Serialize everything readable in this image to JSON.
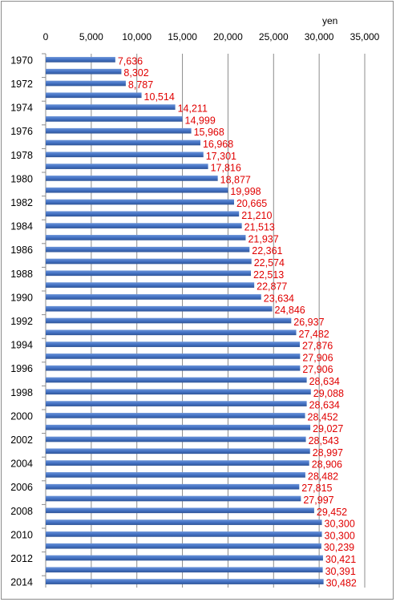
{
  "chart_data": {
    "type": "bar",
    "orientation": "horizontal",
    "unit_label": "yen",
    "xlim": [
      0,
      35000
    ],
    "x_ticks": [
      "0",
      "5,000",
      "10,000",
      "15,000",
      "20,000",
      "25,000",
      "30,000",
      "35,000"
    ],
    "x_tick_values": [
      0,
      5000,
      10000,
      15000,
      20000,
      25000,
      30000,
      35000
    ],
    "categories": [
      "1970",
      "1971",
      "1972",
      "1973",
      "1974",
      "1975",
      "1976",
      "1977",
      "1978",
      "1979",
      "1980",
      "1981",
      "1982",
      "1983",
      "1984",
      "1985",
      "1986",
      "1987",
      "1988",
      "1989",
      "1990",
      "1991",
      "1992",
      "1993",
      "1994",
      "1995",
      "1996",
      "1997",
      "1998",
      "1999",
      "2000",
      "2001",
      "2002",
      "2003",
      "2004",
      "2005",
      "2006",
      "2007",
      "2008",
      "2009",
      "2010",
      "2011",
      "2012",
      "2013",
      "2014"
    ],
    "category_labels_shown": [
      "1970",
      "",
      "1972",
      "",
      "1974",
      "",
      "1976",
      "",
      "1978",
      "",
      "1980",
      "",
      "1982",
      "",
      "1984",
      "",
      "1986",
      "",
      "1988",
      "",
      "1990",
      "",
      "1992",
      "",
      "1994",
      "",
      "1996",
      "",
      "1998",
      "",
      "2000",
      "",
      "2002",
      "",
      "2004",
      "",
      "2006",
      "",
      "2008",
      "",
      "2010",
      "",
      "2012",
      "",
      "2014"
    ],
    "values": [
      7636,
      8302,
      8787,
      10514,
      14211,
      14999,
      15968,
      16968,
      17301,
      17816,
      18877,
      19998,
      20665,
      21210,
      21513,
      21937,
      22361,
      22574,
      22513,
      22877,
      23634,
      24846,
      26937,
      27482,
      27876,
      27906,
      27906,
      28634,
      29088,
      28634,
      28452,
      29027,
      28543,
      28997,
      28906,
      28482,
      27815,
      27997,
      29452,
      30300,
      30300,
      30239,
      30421,
      30391,
      30482
    ],
    "value_labels": [
      "7,636",
      "8,302",
      "8,787",
      "10,514",
      "14,211",
      "14,999",
      "15,968",
      "16,968",
      "17,301",
      "17,816",
      "18,877",
      "19,998",
      "20,665",
      "21,210",
      "21,513",
      "21,937",
      "22,361",
      "22,574",
      "22,513",
      "22,877",
      "23,634",
      "24,846",
      "26,937",
      "27,482",
      "27,876",
      "27,906",
      "27,906",
      "28,634",
      "29,088",
      "28,634",
      "28,452",
      "29,027",
      "28,543",
      "28,997",
      "28,906",
      "28,482",
      "27,815",
      "27,997",
      "29,452",
      "30,300",
      "30,300",
      "30,239",
      "30,421",
      "30,391",
      "30,482"
    ],
    "bar_color": "#4472c4",
    "label_color": "#e00000",
    "grid": true
  }
}
